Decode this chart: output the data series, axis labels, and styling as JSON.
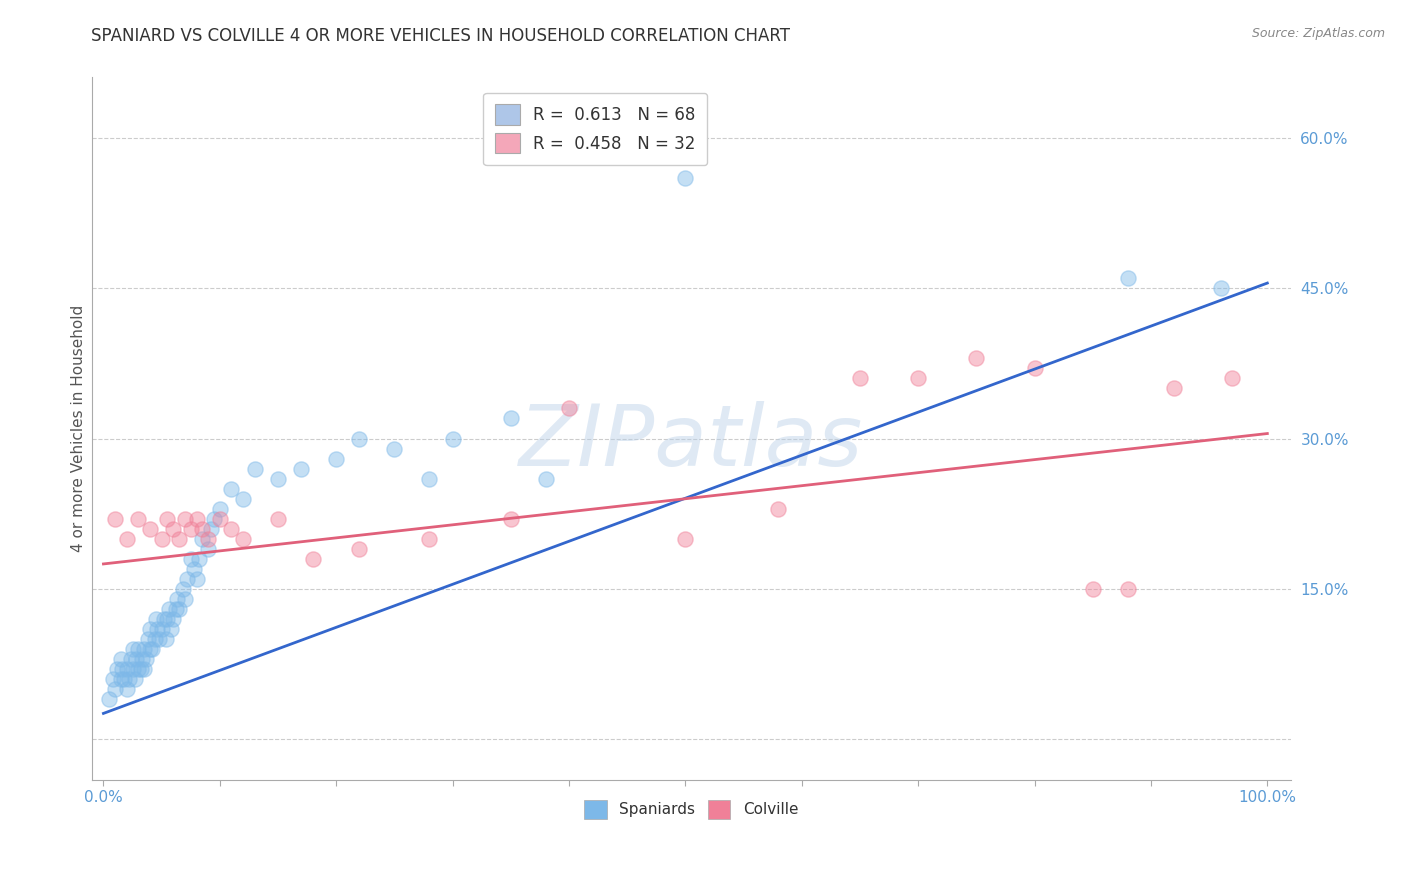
{
  "title": "SPANIARD VS COLVILLE 4 OR MORE VEHICLES IN HOUSEHOLD CORRELATION CHART",
  "source": "Source: ZipAtlas.com",
  "ylabel": "4 or more Vehicles in Household",
  "yticks": [
    0.0,
    0.15,
    0.3,
    0.45,
    0.6
  ],
  "ytick_labels": [
    "",
    "15.0%",
    "30.0%",
    "45.0%",
    "60.0%"
  ],
  "xlim": [
    -0.01,
    1.02
  ],
  "ylim": [
    -0.04,
    0.66
  ],
  "legend_entries": [
    {
      "label_r": "R = ",
      "label_rv": "0.613",
      "label_n": "  N = ",
      "label_nv": "68",
      "color": "#aec6e8"
    },
    {
      "label_r": "R = ",
      "label_rv": "0.458",
      "label_n": "  N = ",
      "label_nv": "32",
      "color": "#f4a7b9"
    }
  ],
  "spaniards_color": "#7db8e8",
  "colville_color": "#f08098",
  "watermark_text": "ZIPatlas",
  "blue_line_x": [
    0.0,
    1.0
  ],
  "blue_line_y": [
    0.026,
    0.455
  ],
  "pink_line_x": [
    0.0,
    1.0
  ],
  "pink_line_y": [
    0.175,
    0.305
  ],
  "spaniards_x": [
    0.005,
    0.008,
    0.01,
    0.012,
    0.015,
    0.015,
    0.016,
    0.018,
    0.02,
    0.02,
    0.022,
    0.024,
    0.025,
    0.025,
    0.027,
    0.028,
    0.03,
    0.03,
    0.032,
    0.033,
    0.035,
    0.035,
    0.037,
    0.038,
    0.04,
    0.04,
    0.042,
    0.044,
    0.045,
    0.046,
    0.048,
    0.05,
    0.052,
    0.054,
    0.055,
    0.056,
    0.058,
    0.06,
    0.062,
    0.063,
    0.065,
    0.068,
    0.07,
    0.072,
    0.075,
    0.078,
    0.08,
    0.082,
    0.085,
    0.09,
    0.092,
    0.095,
    0.1,
    0.11,
    0.12,
    0.13,
    0.15,
    0.17,
    0.2,
    0.22,
    0.25,
    0.28,
    0.3,
    0.35,
    0.38,
    0.5,
    0.88,
    0.96
  ],
  "spaniards_y": [
    0.04,
    0.06,
    0.05,
    0.07,
    0.06,
    0.08,
    0.07,
    0.06,
    0.05,
    0.07,
    0.06,
    0.08,
    0.07,
    0.09,
    0.06,
    0.08,
    0.07,
    0.09,
    0.07,
    0.08,
    0.09,
    0.07,
    0.08,
    0.1,
    0.09,
    0.11,
    0.09,
    0.1,
    0.12,
    0.11,
    0.1,
    0.11,
    0.12,
    0.1,
    0.12,
    0.13,
    0.11,
    0.12,
    0.13,
    0.14,
    0.13,
    0.15,
    0.14,
    0.16,
    0.18,
    0.17,
    0.16,
    0.18,
    0.2,
    0.19,
    0.21,
    0.22,
    0.23,
    0.25,
    0.24,
    0.27,
    0.26,
    0.27,
    0.28,
    0.3,
    0.29,
    0.26,
    0.3,
    0.32,
    0.26,
    0.56,
    0.46,
    0.45
  ],
  "colville_x": [
    0.01,
    0.02,
    0.03,
    0.04,
    0.05,
    0.055,
    0.06,
    0.065,
    0.07,
    0.075,
    0.08,
    0.085,
    0.09,
    0.1,
    0.11,
    0.12,
    0.15,
    0.18,
    0.22,
    0.28,
    0.35,
    0.4,
    0.5,
    0.58,
    0.65,
    0.7,
    0.75,
    0.8,
    0.85,
    0.88,
    0.92,
    0.97
  ],
  "colville_y": [
    0.22,
    0.2,
    0.22,
    0.21,
    0.2,
    0.22,
    0.21,
    0.2,
    0.22,
    0.21,
    0.22,
    0.21,
    0.2,
    0.22,
    0.21,
    0.2,
    0.22,
    0.18,
    0.19,
    0.2,
    0.22,
    0.33,
    0.2,
    0.23,
    0.36,
    0.36,
    0.38,
    0.37,
    0.15,
    0.15,
    0.35,
    0.36
  ],
  "title_fontsize": 12,
  "axis_tick_fontsize": 11,
  "ylabel_fontsize": 11,
  "source_fontsize": 9
}
